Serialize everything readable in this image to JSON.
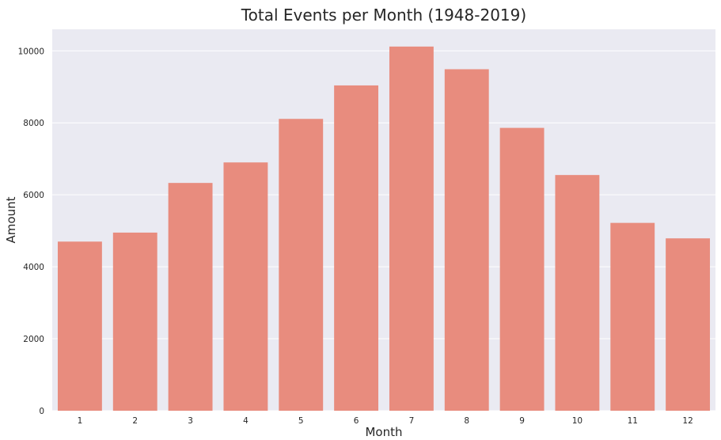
{
  "chart_data": {
    "type": "bar",
    "title": "Total Events per Month (1948-2019)",
    "xlabel": "Month",
    "ylabel": "Amount",
    "categories": [
      "1",
      "2",
      "3",
      "4",
      "5",
      "6",
      "7",
      "8",
      "9",
      "10",
      "11",
      "12"
    ],
    "values": [
      4700,
      4950,
      6330,
      6900,
      8110,
      9040,
      10120,
      9490,
      7860,
      6550,
      5220,
      4790
    ],
    "ylim": [
      0,
      10600
    ],
    "yticks": [
      0,
      2000,
      4000,
      6000,
      8000,
      10000
    ],
    "grid": true,
    "legend": "none",
    "colors": {
      "bar": "#e88c7e",
      "plot_background": "#eaeaf2",
      "grid": "#ffffff"
    }
  }
}
